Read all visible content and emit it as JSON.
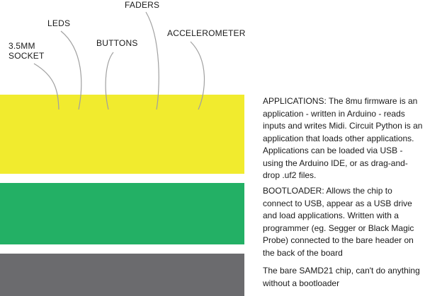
{
  "colors": {
    "applications": "#f1eb2e",
    "bootloader": "#23b065",
    "chip": "#6b6b6e",
    "leader_line": "#a0a0a0"
  },
  "labels": {
    "socket_line1": "3.5MM",
    "socket_line2": "SOCKET",
    "leds": "LEDS",
    "buttons": "BUTTONS",
    "faders": "FADERS",
    "accelerometer": "ACCELEROMETER"
  },
  "descriptions": {
    "applications": "APPLICATIONS: The 8mu firmware is an application - written in Arduino - reads inputs and writes Midi. Circuit Python is an application that loads other applications. Applications can be loaded via USB - using the Arduino IDE, or as drag-and-drop .uf2 files.",
    "bootloader": "BOOTLOADER: Allows the chip to connect to USB, appear as a USB drive and load applications. Written with a programmer (eg. Segger or Black Magic Probe) connected to the bare header on the back of the board",
    "chip": "The bare SAMD21 chip, can't do anything without a bootloader"
  }
}
